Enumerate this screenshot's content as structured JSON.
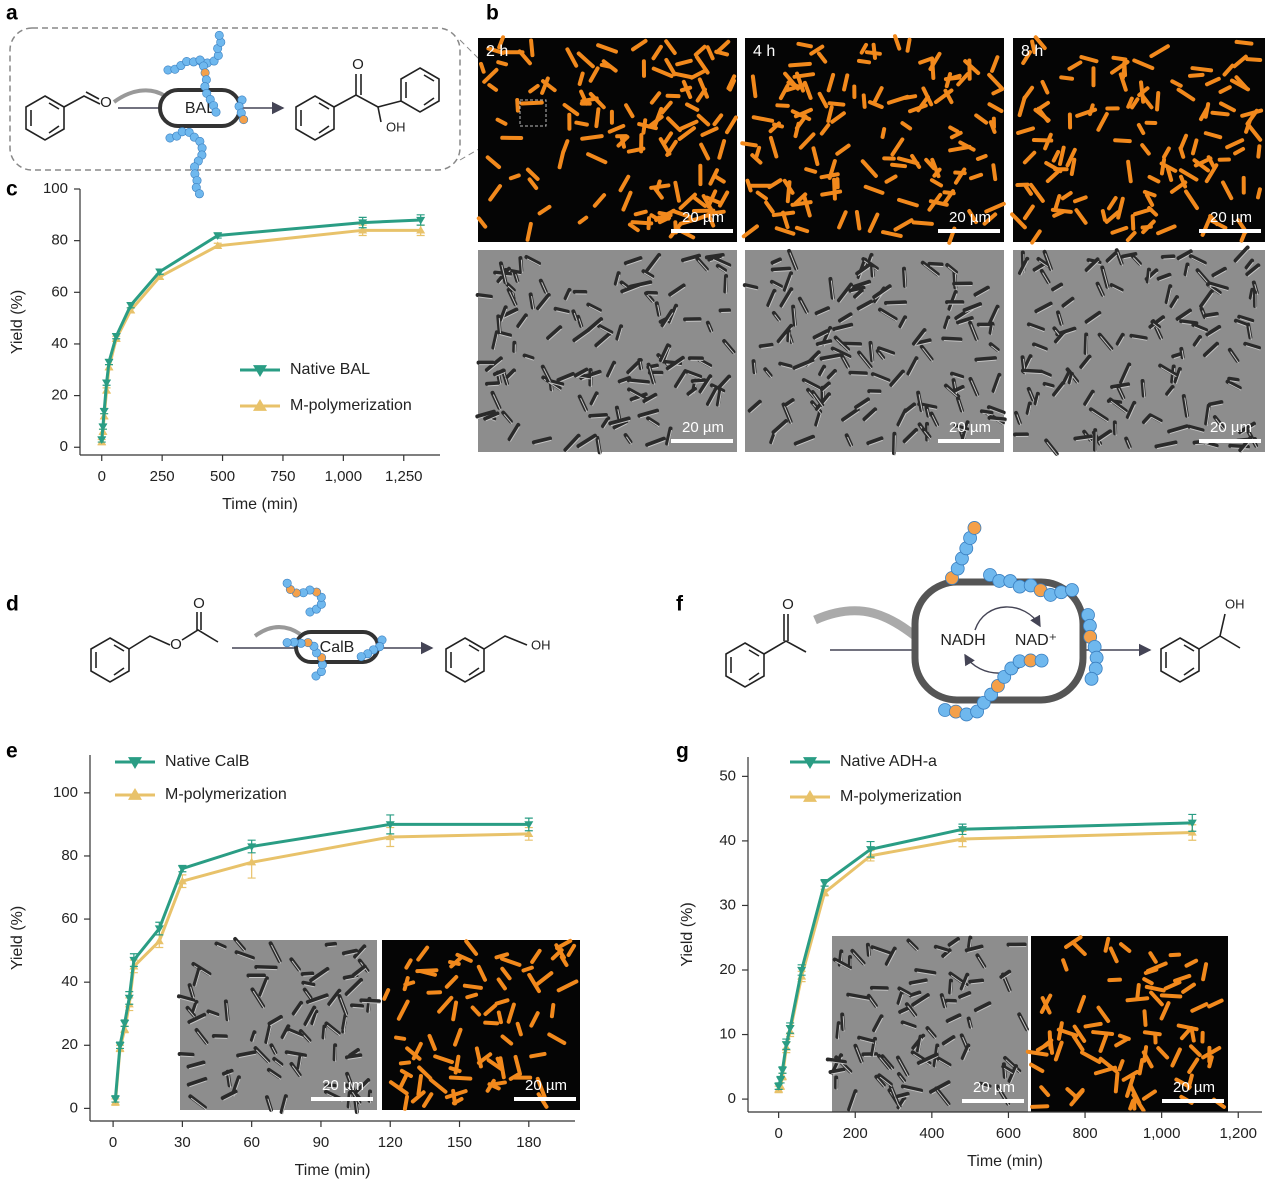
{
  "figure": {
    "panel_a": {
      "letter": "a",
      "enzyme": "BAL",
      "aldehyde_oxygen": "O",
      "ketone_oxygen": "O",
      "hydroxyl": "OH"
    },
    "panel_b": {
      "letter": "b",
      "times": [
        "2 h",
        "4 h",
        "8 h"
      ],
      "scale_bars": [
        "20 µm",
        "20 µm",
        "20 µm",
        "20 µm",
        "20 µm",
        "20 µm"
      ]
    },
    "panel_d": {
      "letter": "d",
      "enzyme": "CalB",
      "ester_oxygen": "O",
      "carbonyl_oxygen": "O",
      "hydroxyl": "OH"
    },
    "panel_f": {
      "letter": "f",
      "cofactor_reduced": "NADH",
      "cofactor_oxidized": "NAD⁺",
      "ketone_oxygen": "O",
      "hydroxyl": "OH"
    }
  },
  "chart_data": [
    {
      "type": "line",
      "panel": "c",
      "x_label": "Time (min)",
      "y_label": "Yield (%)",
      "x": [
        0,
        5,
        10,
        20,
        30,
        60,
        120,
        240,
        480,
        1080,
        1320
      ],
      "series": [
        {
          "name": "Native BAL",
          "color": "#2a9d84",
          "marker": "v",
          "values": [
            3,
            8,
            14,
            25,
            33,
            43,
            55,
            68,
            82,
            87,
            88
          ],
          "errors": [
            1,
            1,
            1,
            1,
            1,
            1,
            1,
            1,
            1,
            2,
            2
          ]
        },
        {
          "name": "M-polymerization",
          "color": "#e8c26a",
          "marker": "^",
          "values": [
            2,
            6,
            12,
            22,
            31,
            42,
            53,
            66,
            78,
            84,
            84
          ],
          "errors": [
            1,
            1,
            1,
            1,
            1,
            1,
            1,
            1,
            1,
            2,
            2
          ]
        }
      ],
      "xlim": [
        -90,
        1400
      ],
      "ylim": [
        -3,
        100
      ],
      "xticks": [
        0,
        250,
        500,
        750,
        {
          "value": 1000,
          "label": "1,000"
        },
        {
          "value": 1250,
          "label": "1,250"
        }
      ],
      "yticks": [
        0,
        20,
        40,
        60,
        80,
        100
      ]
    },
    {
      "type": "line",
      "panel": "e",
      "x_label": "Time (min)",
      "y_label": "Yield (%)",
      "x": [
        1,
        3,
        5,
        7,
        9,
        20,
        30,
        60,
        120,
        180
      ],
      "series": [
        {
          "name": "Native CalB",
          "color": "#2a9d84",
          "marker": "v",
          "values": [
            3,
            20,
            27,
            35,
            47,
            57,
            76,
            83,
            90,
            90
          ],
          "errors": [
            1,
            1,
            1,
            2,
            2,
            2,
            1,
            2,
            3,
            2
          ]
        },
        {
          "name": "M-polymerization",
          "color": "#e8c26a",
          "marker": "^",
          "values": [
            2,
            19,
            25,
            33,
            45,
            53,
            72,
            78,
            86,
            87
          ],
          "errors": [
            1,
            1,
            1,
            2,
            2,
            2,
            2,
            5,
            3,
            2
          ]
        }
      ],
      "inset_scale_bars": [
        "20 µm",
        "20 µm"
      ],
      "xlim": [
        -10,
        200
      ],
      "ylim": [
        -4,
        112
      ],
      "xticks": [
        0,
        30,
        60,
        90,
        120,
        150,
        180
      ],
      "yticks": [
        0,
        20,
        40,
        60,
        80,
        100
      ]
    },
    {
      "type": "line",
      "panel": "g",
      "x_label": "Time (min)",
      "y_label": "Yield (%)",
      "x": [
        0,
        5,
        10,
        20,
        30,
        60,
        120,
        240,
        480,
        1080
      ],
      "series": [
        {
          "name": "Native ADH-a",
          "color": "#2a9d84",
          "marker": "v",
          "values": [
            2,
            3,
            4.5,
            8.5,
            11,
            20,
            33.5,
            38.7,
            41.8,
            42.8
          ],
          "errors": [
            0.5,
            0.5,
            0.5,
            0.8,
            0.8,
            0.8,
            0.5,
            1.2,
            0.8,
            1.3
          ]
        },
        {
          "name": "M-polymerization",
          "color": "#e8c26a",
          "marker": "^",
          "values": [
            1.5,
            2,
            3.5,
            8,
            10.5,
            19,
            32,
            37.7,
            40.3,
            41.3
          ],
          "errors": [
            0.5,
            0.5,
            0.5,
            0.8,
            0.8,
            0.8,
            0.5,
            0.8,
            1.2,
            1.2
          ]
        }
      ],
      "inset_scale_bars": [
        "20 µm",
        "20 µm"
      ],
      "xlim": [
        -80,
        1262
      ],
      "ylim": [
        -2,
        53
      ],
      "xticks": [
        0,
        200,
        400,
        600,
        800,
        {
          "value": 1000,
          "label": "1,000"
        },
        {
          "value": 1200,
          "label": "1,200"
        }
      ],
      "yticks": [
        0,
        10,
        20,
        30,
        40,
        50
      ]
    }
  ]
}
